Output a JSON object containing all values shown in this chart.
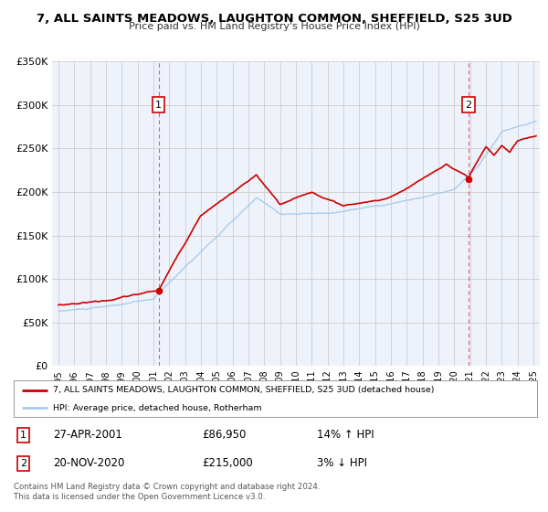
{
  "title": "7, ALL SAINTS MEADOWS, LAUGHTON COMMON, SHEFFIELD, S25 3UD",
  "subtitle": "Price paid vs. HM Land Registry's House Price Index (HPI)",
  "red_line_label": "7, ALL SAINTS MEADOWS, LAUGHTON COMMON, SHEFFIELD, S25 3UD (detached house)",
  "blue_line_label": "HPI: Average price, detached house, Rotherham",
  "marker1_label": "1",
  "marker1_price": 86950,
  "marker1_year": 2001.32,
  "marker1_text": "27-APR-2001",
  "marker1_price_text": "£86,950",
  "marker1_hpi_text": "14% ↑ HPI",
  "marker2_label": "2",
  "marker2_price": 215000,
  "marker2_year": 2020.88,
  "marker2_text": "20-NOV-2020",
  "marker2_price_text": "£215,000",
  "marker2_hpi_text": "3% ↓ HPI",
  "footer": "Contains HM Land Registry data © Crown copyright and database right 2024.\nThis data is licensed under the Open Government Licence v3.0.",
  "ylim": [
    0,
    350000
  ],
  "yticks": [
    0,
    50000,
    100000,
    150000,
    200000,
    250000,
    300000,
    350000
  ],
  "ytick_labels": [
    "£0",
    "£50K",
    "£100K",
    "£150K",
    "£200K",
    "£250K",
    "£300K",
    "£350K"
  ],
  "red_color": "#cc0000",
  "blue_color": "#aaccee",
  "marker_color": "#cc0000",
  "vline_color": "#dd4444",
  "bg_color": "#ffffff",
  "plot_bg_color": "#eef2fb",
  "grid_color": "#cccccc",
  "xmin": 1994.6,
  "xmax": 2025.4
}
